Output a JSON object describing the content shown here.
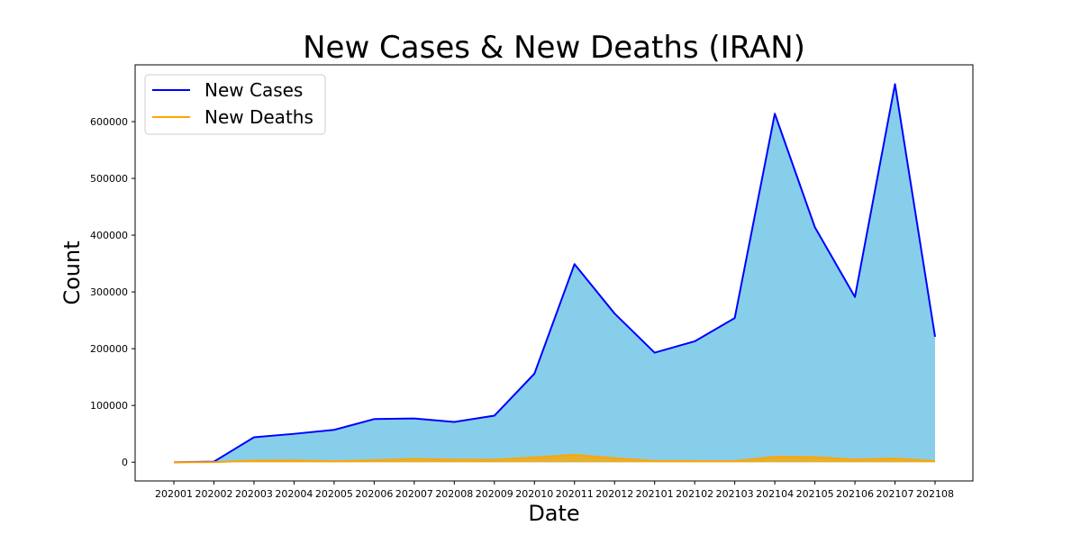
{
  "chart_data": {
    "type": "area",
    "title": "New Cases & New Deaths (IRAN)",
    "xlabel": "Date",
    "ylabel": "Count",
    "categories": [
      "202001",
      "202002",
      "202003",
      "202004",
      "202005",
      "202006",
      "202007",
      "202008",
      "202009",
      "202010",
      "202011",
      "202012",
      "202101",
      "202102",
      "202103",
      "202104",
      "202105",
      "202106",
      "202107",
      "202108"
    ],
    "series": [
      {
        "name": "New Cases",
        "line_color": "#0000ff",
        "fill_color": "#87ceeb",
        "values": [
          0,
          1000,
          44000,
          50000,
          57000,
          76000,
          77000,
          71000,
          82000,
          156000,
          349000,
          262000,
          193000,
          213000,
          254000,
          614000,
          414000,
          291000,
          666000,
          221000
        ]
      },
      {
        "name": "New Deaths",
        "line_color": "#ffa500",
        "fill_color": "#e6b030",
        "values": [
          0,
          100,
          2900,
          3100,
          1800,
          3400,
          5700,
          4500,
          4300,
          8500,
          13000,
          7000,
          2300,
          2000,
          2000,
          9500,
          9000,
          4600,
          6500,
          2000
        ]
      }
    ],
    "yticks": [
      0,
      100000,
      200000,
      300000,
      400000,
      500000,
      600000
    ],
    "ytick_labels": [
      "0",
      "100000",
      "200000",
      "300000",
      "400000",
      "500000",
      "600000"
    ],
    "ylim": [
      -33000,
      700000
    ],
    "grid": false,
    "legend_position": "upper-left"
  }
}
